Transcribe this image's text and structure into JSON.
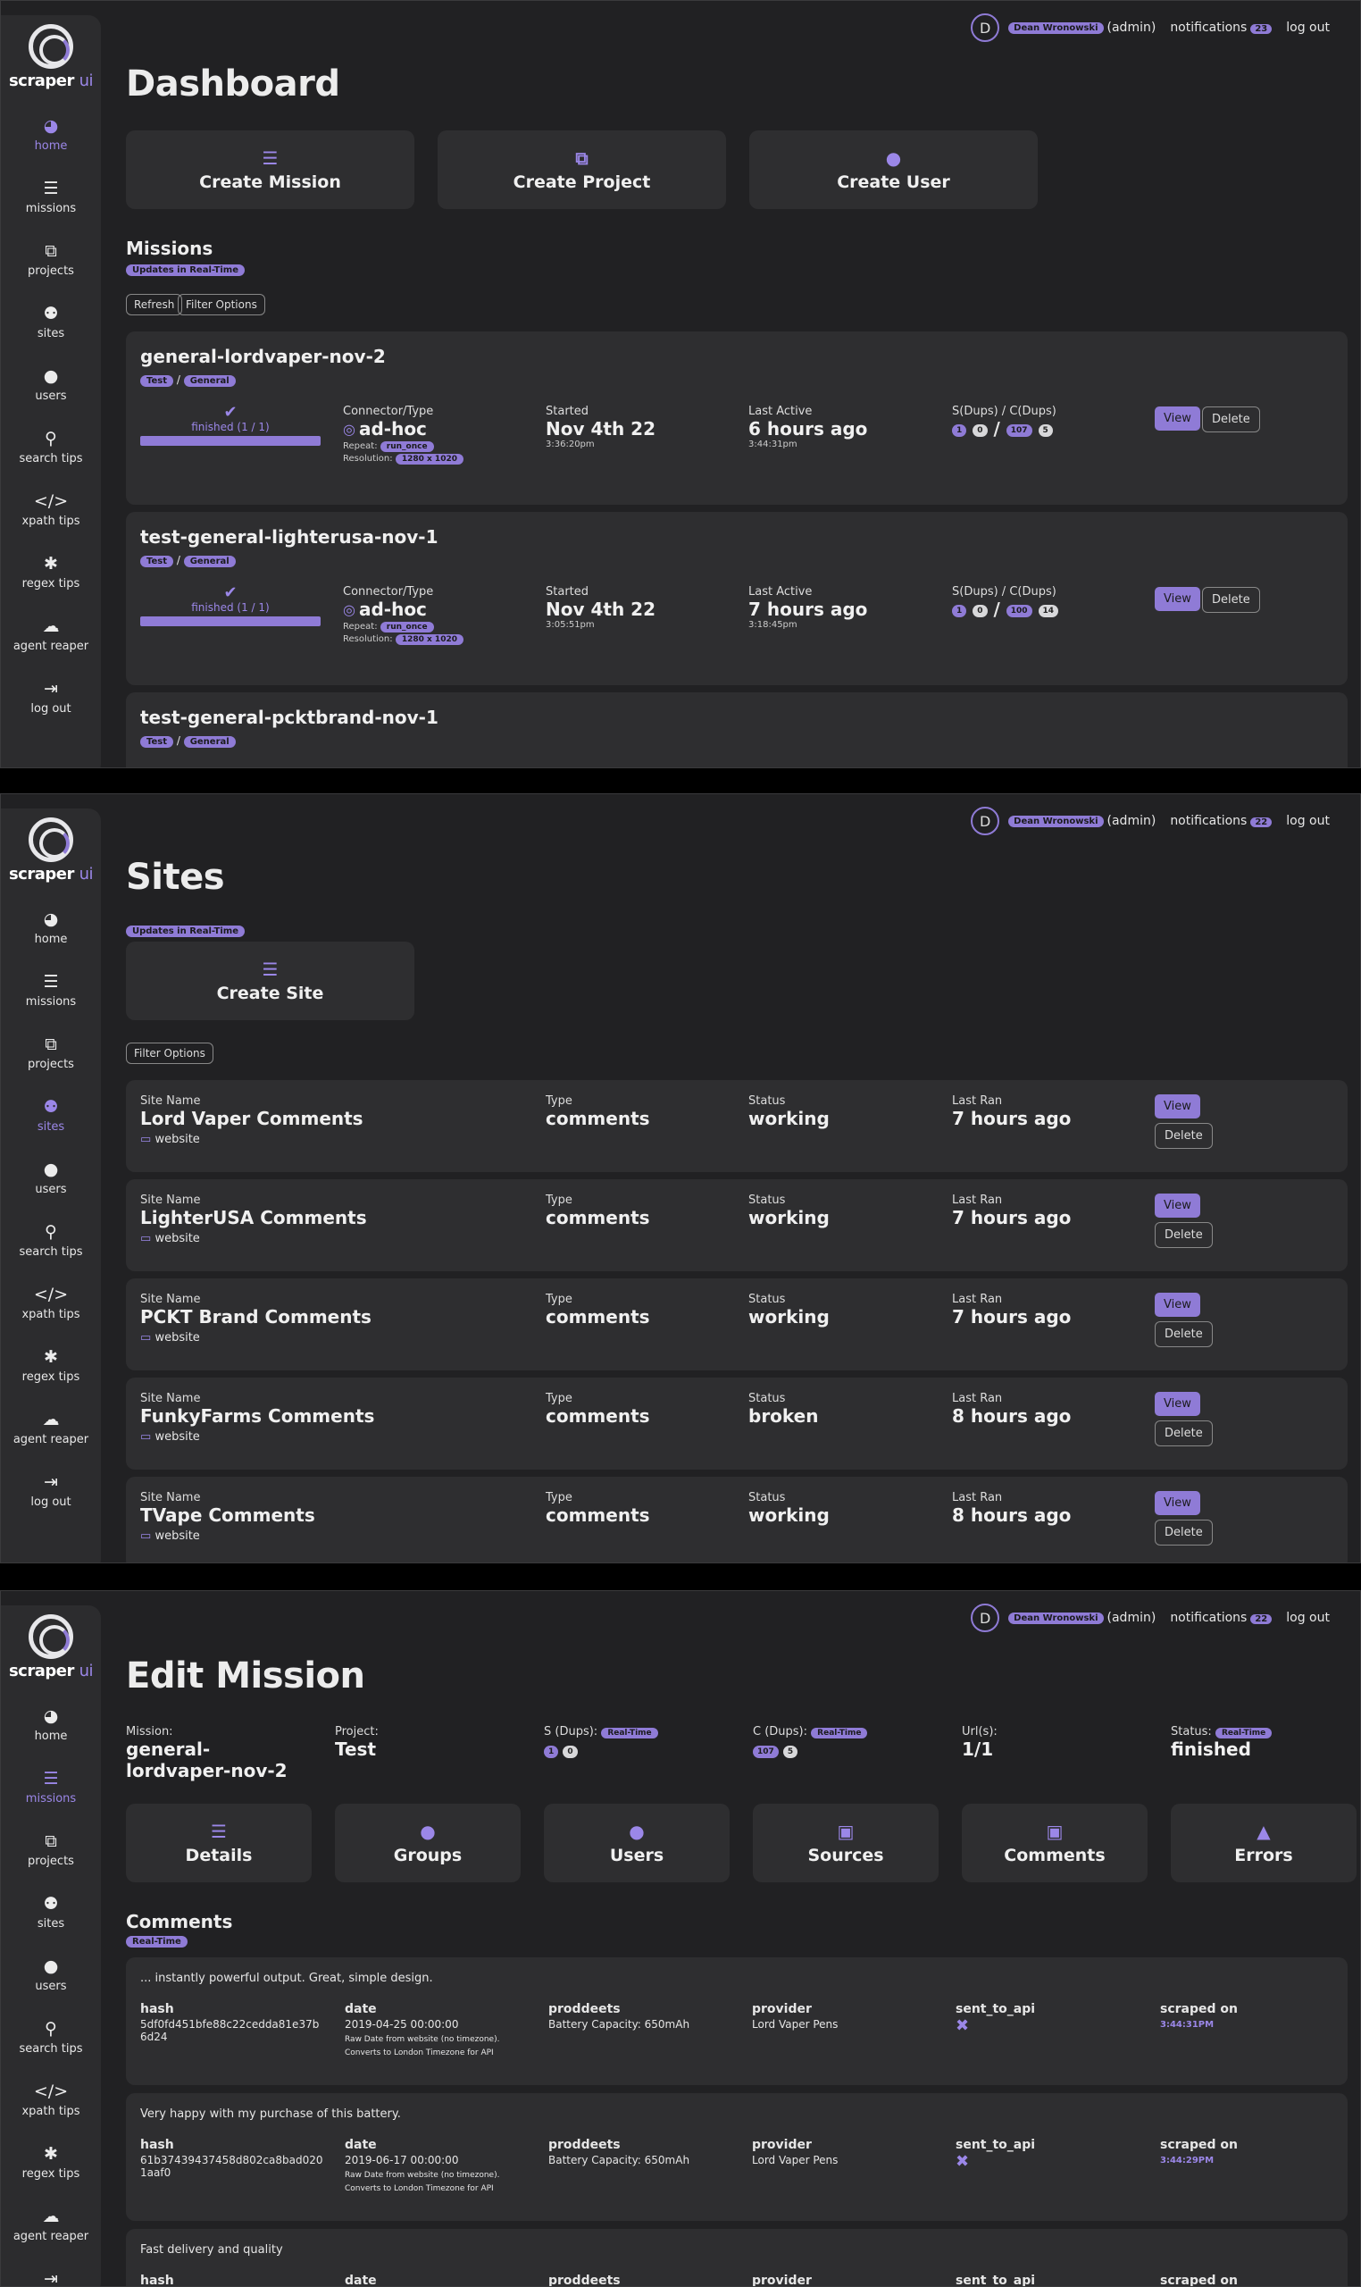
{
  "brand": {
    "name": "scraper",
    "suffix": "ui"
  },
  "nav": [
    {
      "label": "home",
      "icon": "◕",
      "name": "home"
    },
    {
      "label": "missions",
      "icon": "☰",
      "name": "missions"
    },
    {
      "label": "projects",
      "icon": "⧉",
      "name": "projects"
    },
    {
      "label": "sites",
      "icon": "⚉",
      "name": "sites"
    },
    {
      "label": "users",
      "icon": "●",
      "name": "users"
    },
    {
      "label": "search tips",
      "icon": "⚲",
      "name": "search-tips"
    },
    {
      "label": "xpath tips",
      "icon": "</>",
      "name": "xpath-tips"
    },
    {
      "label": "regex tips",
      "icon": "✱",
      "name": "regex-tips"
    },
    {
      "label": "agent reaper",
      "icon": "☁",
      "name": "agent-reaper"
    },
    {
      "label": "log out",
      "icon": "⇥",
      "name": "log-out"
    }
  ],
  "topbar": {
    "avatar": "D",
    "user": "Dean Wronowski",
    "role": "(admin)",
    "notifications": "notifications",
    "count": "23",
    "count2": "22",
    "logout": "log out"
  },
  "dashboard": {
    "title": "Dashboard",
    "actions": [
      "Create Mission",
      "Create Project",
      "Create User"
    ],
    "section": "Missions",
    "realtime": "Updates in Real-Time",
    "refresh": "Refresh",
    "filter": "Filter Options",
    "missions": [
      {
        "name": "general-lordvaper-nov-2",
        "project": "Test",
        "type": "General",
        "status": "finished (1 / 1)",
        "progress": 1,
        "connector_label": "Connector/Type",
        "connector": "ad-hoc",
        "repeat_label": "Repeat:",
        "repeat": "run_once",
        "res_label": "Resolution:",
        "res": "1280 x 1020",
        "started_label": "Started",
        "started": "Nov 4th 22",
        "started_time": "3:36:20pm",
        "active_label": "Last Active",
        "active": "6 hours ago",
        "active_time": "3:44:31pm",
        "sc_label": "S(Dups) / C(Dups)",
        "s": "1",
        "sd": "0",
        "c": "107",
        "cd": "5"
      },
      {
        "name": "test-general-lighterusa-nov-1",
        "project": "Test",
        "type": "General",
        "status": "finished (1 / 1)",
        "progress": 1,
        "connector_label": "Connector/Type",
        "connector": "ad-hoc",
        "repeat_label": "Repeat:",
        "repeat": "run_once",
        "res_label": "Resolution:",
        "res": "1280 x 1020",
        "started_label": "Started",
        "started": "Nov 4th 22",
        "started_time": "3:05:51pm",
        "active_label": "Last Active",
        "active": "7 hours ago",
        "active_time": "3:18:45pm",
        "sc_label": "S(Dups) / C(Dups)",
        "s": "1",
        "sd": "0",
        "c": "100",
        "cd": "14"
      },
      {
        "name": "test-general-pcktbrand-nov-1",
        "project": "Test",
        "type": "General"
      }
    ],
    "view": "View",
    "delete": "Delete"
  },
  "sites": {
    "title": "Sites",
    "realtime": "Updates in Real-Time",
    "create": "Create Site",
    "filter": "Filter Options",
    "labels": {
      "name": "Site Name",
      "type": "Type",
      "status": "Status",
      "last": "Last Ran"
    },
    "rows": [
      {
        "name": "Lord Vaper Comments",
        "type": "comments",
        "status": "working",
        "last": "7 hours ago",
        "kind": "website"
      },
      {
        "name": "LighterUSA Comments",
        "type": "comments",
        "status": "working",
        "last": "7 hours ago",
        "kind": "website"
      },
      {
        "name": "PCKT Brand Comments",
        "type": "comments",
        "status": "working",
        "last": "7 hours ago",
        "kind": "website"
      },
      {
        "name": "FunkyFarms Comments",
        "type": "comments",
        "status": "broken",
        "last": "8 hours ago",
        "kind": "website"
      },
      {
        "name": "TVape Comments",
        "type": "comments",
        "status": "working",
        "last": "8 hours ago",
        "kind": "website"
      }
    ],
    "view": "View",
    "delete": "Delete"
  },
  "edit": {
    "title": "Edit Mission",
    "mission_label": "Mission:",
    "mission": "general-lordvaper-nov-2",
    "project_label": "Project:",
    "project": "Test",
    "s_label": "S (Dups):",
    "c_label": "C (Dups):",
    "realtime": "Real-Time",
    "s": "1",
    "sd": "0",
    "c": "107",
    "cd": "5",
    "url_label": "Url(s):",
    "url": "1/1",
    "status_label": "Status:",
    "status": "finished",
    "tabs": [
      "Details",
      "Groups",
      "Users",
      "Sources",
      "Comments",
      "Errors"
    ],
    "section": "Comments",
    "cols": {
      "hash": "hash",
      "date": "date",
      "proddeets": "proddeets",
      "provider": "provider",
      "sent": "sent_to_api",
      "scraped": "scraped on"
    },
    "note1": "Raw Date from website (no timezone).",
    "note2": "Converts to London Timezone for API",
    "comments": [
      {
        "text": "... instantly powerful output. Great, simple design.",
        "hash": "5df0fd451bfe88c22cedda81e37b6d24",
        "date": "2019-04-25 00:00:00",
        "proddeets": "Battery Capacity: 650mAh",
        "provider": "Lord Vaper Pens",
        "scraped": "3:44:31PM"
      },
      {
        "text": "Very happy with my purchase of this battery.",
        "hash": "61b37439437458d802ca8bad0201aaf0",
        "date": "2019-06-17 00:00:00",
        "proddeets": "Battery Capacity: 650mAh",
        "provider": "Lord Vaper Pens",
        "scraped": "3:44:29PM"
      },
      {
        "text": "Fast delivery and quality"
      }
    ]
  }
}
